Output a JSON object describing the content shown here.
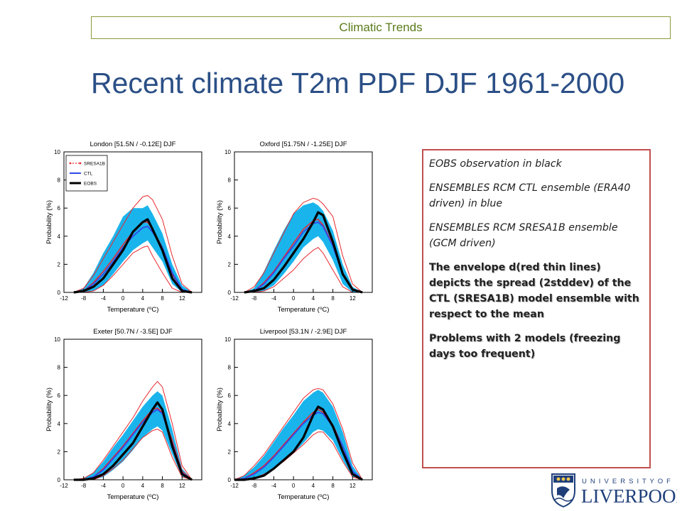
{
  "header": {
    "text": "Climatic Trends"
  },
  "title": "Recent climate T2m PDF DJF 1961-2000",
  "notes": [
    {
      "style": "italic",
      "text": "EOBS observation in black"
    },
    {
      "style": "italic",
      "text": "ENSEMBLES RCM CTL ensemble (ERA40 driven) in blue"
    },
    {
      "style": "italic",
      "text": "ENSEMBLES RCM SRESA1B ensemble (GCM driven)"
    },
    {
      "style": "bold",
      "text": "The envelope d(red thin lines) depicts the spread (2stddev) of the CTL (SRESA1B) model ensemble with respect to the mean"
    },
    {
      "style": "bold",
      "text": "Problems with 2  models (freezing days too frequent)"
    }
  ],
  "logo": {
    "top": "U N I V E R S I T Y   O F",
    "bottom": "LIVERPOOL"
  },
  "colors": {
    "sresa1b": "#e8282e",
    "ctl": "#2f49e8",
    "eobs": "#000000",
    "band": "#1ab4ec",
    "title": "#2b4f86",
    "header": "#5a7a1a"
  },
  "chart_data": [
    {
      "type": "line",
      "title": "London [51.5N / -0.12E] DJF",
      "xlabel": "Temperature (oC)",
      "ylabel": "Probability (%)",
      "xlim": [
        -12,
        16
      ],
      "ylim": [
        0,
        10
      ],
      "xticks": [
        -12,
        -8,
        -4,
        0,
        4,
        8,
        12
      ],
      "yticks": [
        0,
        2,
        4,
        6,
        8,
        10
      ],
      "legend": [
        "SRESA1B",
        "CTL",
        "EOBS"
      ],
      "x": [
        -10,
        -8,
        -6,
        -4,
        -2,
        0,
        2,
        4,
        5,
        6,
        8,
        10,
        12,
        14
      ],
      "series": [
        {
          "name": "EOBS",
          "values": [
            0,
            0.1,
            0.4,
            1.0,
            2.0,
            3.0,
            4.3,
            5.0,
            5.2,
            4.5,
            3.0,
            1.0,
            0.1,
            0
          ]
        },
        {
          "name": "CTL",
          "values": [
            0,
            0.1,
            0.6,
            1.3,
            2.2,
            3.2,
            4.0,
            4.6,
            4.7,
            4.3,
            3.2,
            1.4,
            0.2,
            0
          ]
        },
        {
          "name": "SRESA1B",
          "values": [
            0,
            0.1,
            0.7,
            1.5,
            2.4,
            3.4,
            4.3,
            5.0,
            5.0,
            4.5,
            3.2,
            1.3,
            0.2,
            0
          ]
        },
        {
          "name": "SRESA1B upper",
          "values": [
            0,
            0.3,
            1.2,
            2.4,
            3.6,
            4.8,
            6.0,
            6.8,
            6.9,
            6.6,
            5.2,
            2.6,
            0.6,
            0
          ]
        },
        {
          "name": "SRESA1B lower",
          "values": [
            0,
            0,
            0.1,
            0.5,
            1.2,
            2.0,
            2.8,
            3.2,
            3.3,
            2.6,
            1.4,
            0.3,
            0,
            0
          ]
        },
        {
          "name": "CTL band upper",
          "values": [
            0,
            0.3,
            1.4,
            2.8,
            4.0,
            5.4,
            6.0,
            6.0,
            6.2,
            5.6,
            4.2,
            2.0,
            0.5,
            0
          ]
        },
        {
          "name": "CTL band lower",
          "values": [
            0,
            0,
            0.1,
            0.5,
            1.3,
            2.2,
            3.0,
            3.5,
            3.7,
            3.2,
            2.2,
            0.6,
            0,
            0
          ]
        }
      ]
    },
    {
      "type": "line",
      "title": "Oxford [51.75N / -1.25E] DJF",
      "xlabel": "Temperature (oC)",
      "ylabel": "Probability (%)",
      "xlim": [
        -12,
        16
      ],
      "ylim": [
        0,
        10
      ],
      "xticks": [
        -12,
        -8,
        -4,
        0,
        4,
        8,
        12
      ],
      "yticks": [
        0,
        2,
        4,
        6,
        8,
        10
      ],
      "x": [
        -10,
        -8,
        -6,
        -4,
        -2,
        0,
        2,
        4,
        5,
        6,
        8,
        10,
        12,
        14
      ],
      "series": [
        {
          "name": "EOBS",
          "values": [
            0,
            0.1,
            0.3,
            0.9,
            1.8,
            2.8,
            3.8,
            5.0,
            5.7,
            5.5,
            3.6,
            1.3,
            0.2,
            0
          ]
        },
        {
          "name": "CTL",
          "values": [
            0,
            0.1,
            0.6,
            1.4,
            2.4,
            3.3,
            4.3,
            4.9,
            5.0,
            4.7,
            3.3,
            1.3,
            0.2,
            0
          ]
        },
        {
          "name": "SRESA1B",
          "values": [
            0,
            0.1,
            0.7,
            1.5,
            2.5,
            3.5,
            4.5,
            5.1,
            5.2,
            4.8,
            3.4,
            1.4,
            0.2,
            0
          ]
        },
        {
          "name": "SRESA1B upper",
          "values": [
            0,
            0.4,
            1.4,
            2.8,
            4.2,
            5.6,
            6.4,
            6.7,
            6.6,
            6.3,
            5.4,
            2.6,
            0.6,
            0
          ]
        },
        {
          "name": "SRESA1B lower",
          "values": [
            0,
            0,
            0.1,
            0.4,
            1.0,
            1.6,
            2.4,
            3.0,
            3.2,
            2.8,
            1.6,
            0.4,
            0,
            0
          ]
        },
        {
          "name": "CTL band upper",
          "values": [
            0,
            0.3,
            1.5,
            3.0,
            4.4,
            5.6,
            6.2,
            6.4,
            6.2,
            5.8,
            4.4,
            2.0,
            0.4,
            0
          ]
        },
        {
          "name": "CTL band lower",
          "values": [
            0,
            0,
            0.1,
            0.5,
            1.3,
            2.2,
            3.2,
            3.8,
            4.0,
            3.6,
            2.3,
            0.6,
            0,
            0
          ]
        }
      ]
    },
    {
      "type": "line",
      "title": "Exeter [50.7N / -3.5E] DJF",
      "xlabel": "Temperature (oC)",
      "ylabel": "Probability (%)",
      "xlim": [
        -12,
        16
      ],
      "ylim": [
        0,
        10
      ],
      "xticks": [
        -12,
        -8,
        -4,
        0,
        4,
        8,
        12
      ],
      "yticks": [
        0,
        2,
        4,
        6,
        8,
        10
      ],
      "x": [
        -10,
        -8,
        -6,
        -4,
        -2,
        0,
        2,
        4,
        6,
        7,
        8,
        10,
        12,
        14
      ],
      "series": [
        {
          "name": "EOBS",
          "values": [
            0,
            0,
            0.1,
            0.4,
            1.0,
            1.8,
            2.6,
            3.8,
            5.0,
            5.5,
            5.0,
            2.4,
            0.4,
            0
          ]
        },
        {
          "name": "CTL",
          "values": [
            0,
            0,
            0.2,
            0.7,
            1.5,
            2.3,
            3.2,
            4.1,
            4.8,
            5.0,
            4.7,
            2.6,
            0.5,
            0
          ]
        },
        {
          "name": "SRESA1B",
          "values": [
            0,
            0,
            0.2,
            0.8,
            1.6,
            2.4,
            3.3,
            4.2,
            5.0,
            5.1,
            4.8,
            2.8,
            0.6,
            0
          ]
        },
        {
          "name": "SRESA1B upper",
          "values": [
            0,
            0.1,
            0.5,
            1.4,
            2.4,
            3.4,
            4.4,
            5.6,
            6.6,
            7.0,
            6.6,
            4.0,
            1.0,
            0
          ]
        },
        {
          "name": "SRESA1B lower",
          "values": [
            0,
            0,
            0,
            0.3,
            0.8,
            1.4,
            2.2,
            3.0,
            3.5,
            3.6,
            3.4,
            1.6,
            0.2,
            0
          ]
        },
        {
          "name": "CTL band upper",
          "values": [
            0,
            0.1,
            0.5,
            1.3,
            2.3,
            3.2,
            4.2,
            5.2,
            6.0,
            6.3,
            6.0,
            3.6,
            0.8,
            0
          ]
        },
        {
          "name": "CTL band lower",
          "values": [
            0,
            0,
            0,
            0.2,
            0.7,
            1.3,
            2.1,
            3.0,
            3.6,
            3.8,
            3.5,
            1.8,
            0.2,
            0
          ]
        }
      ]
    },
    {
      "type": "line",
      "title": "Liverpool [53.1N / -2.9E] DJF",
      "xlabel": "Temperature (oC)",
      "ylabel": "Probability (%)",
      "xlim": [
        -12,
        16
      ],
      "ylim": [
        0,
        10
      ],
      "xticks": [
        -12,
        -8,
        -4,
        0,
        4,
        8,
        12
      ],
      "yticks": [
        0,
        2,
        4,
        6,
        8,
        10
      ],
      "x": [
        -12,
        -10,
        -8,
        -6,
        -4,
        -2,
        0,
        2,
        4,
        5,
        6,
        8,
        10,
        12,
        14
      ],
      "series": [
        {
          "name": "EOBS",
          "values": [
            0,
            0,
            0.1,
            0.3,
            0.8,
            1.4,
            2.0,
            3.0,
            4.6,
            5.2,
            5.0,
            3.8,
            2.0,
            0.4,
            0
          ]
        },
        {
          "name": "CTL",
          "values": [
            0,
            0.1,
            0.4,
            0.9,
            1.6,
            2.4,
            3.2,
            4.0,
            4.6,
            4.8,
            4.7,
            3.8,
            2.4,
            0.6,
            0
          ]
        },
        {
          "name": "SRESA1B",
          "values": [
            0,
            0.1,
            0.5,
            1.0,
            1.7,
            2.5,
            3.3,
            4.1,
            4.8,
            5.0,
            4.8,
            3.9,
            2.4,
            0.6,
            0
          ]
        },
        {
          "name": "SRESA1B upper",
          "values": [
            0,
            0.3,
            1.0,
            1.8,
            2.8,
            3.8,
            4.8,
            5.8,
            6.4,
            6.5,
            6.4,
            5.4,
            3.6,
            1.2,
            0
          ]
        },
        {
          "name": "SRESA1B lower",
          "values": [
            0,
            0,
            0.1,
            0.4,
            0.8,
            1.3,
            1.9,
            2.5,
            3.2,
            3.4,
            3.4,
            2.6,
            1.3,
            0.2,
            0
          ]
        },
        {
          "name": "CTL band upper",
          "values": [
            0,
            0.3,
            0.9,
            1.7,
            2.7,
            3.7,
            4.6,
            5.6,
            6.2,
            6.4,
            6.2,
            5.2,
            3.4,
            1.0,
            0
          ]
        },
        {
          "name": "CTL band lower",
          "values": [
            0,
            0,
            0.1,
            0.4,
            0.8,
            1.3,
            1.9,
            2.6,
            3.4,
            3.6,
            3.5,
            2.8,
            1.4,
            0.2,
            0
          ]
        }
      ]
    }
  ]
}
